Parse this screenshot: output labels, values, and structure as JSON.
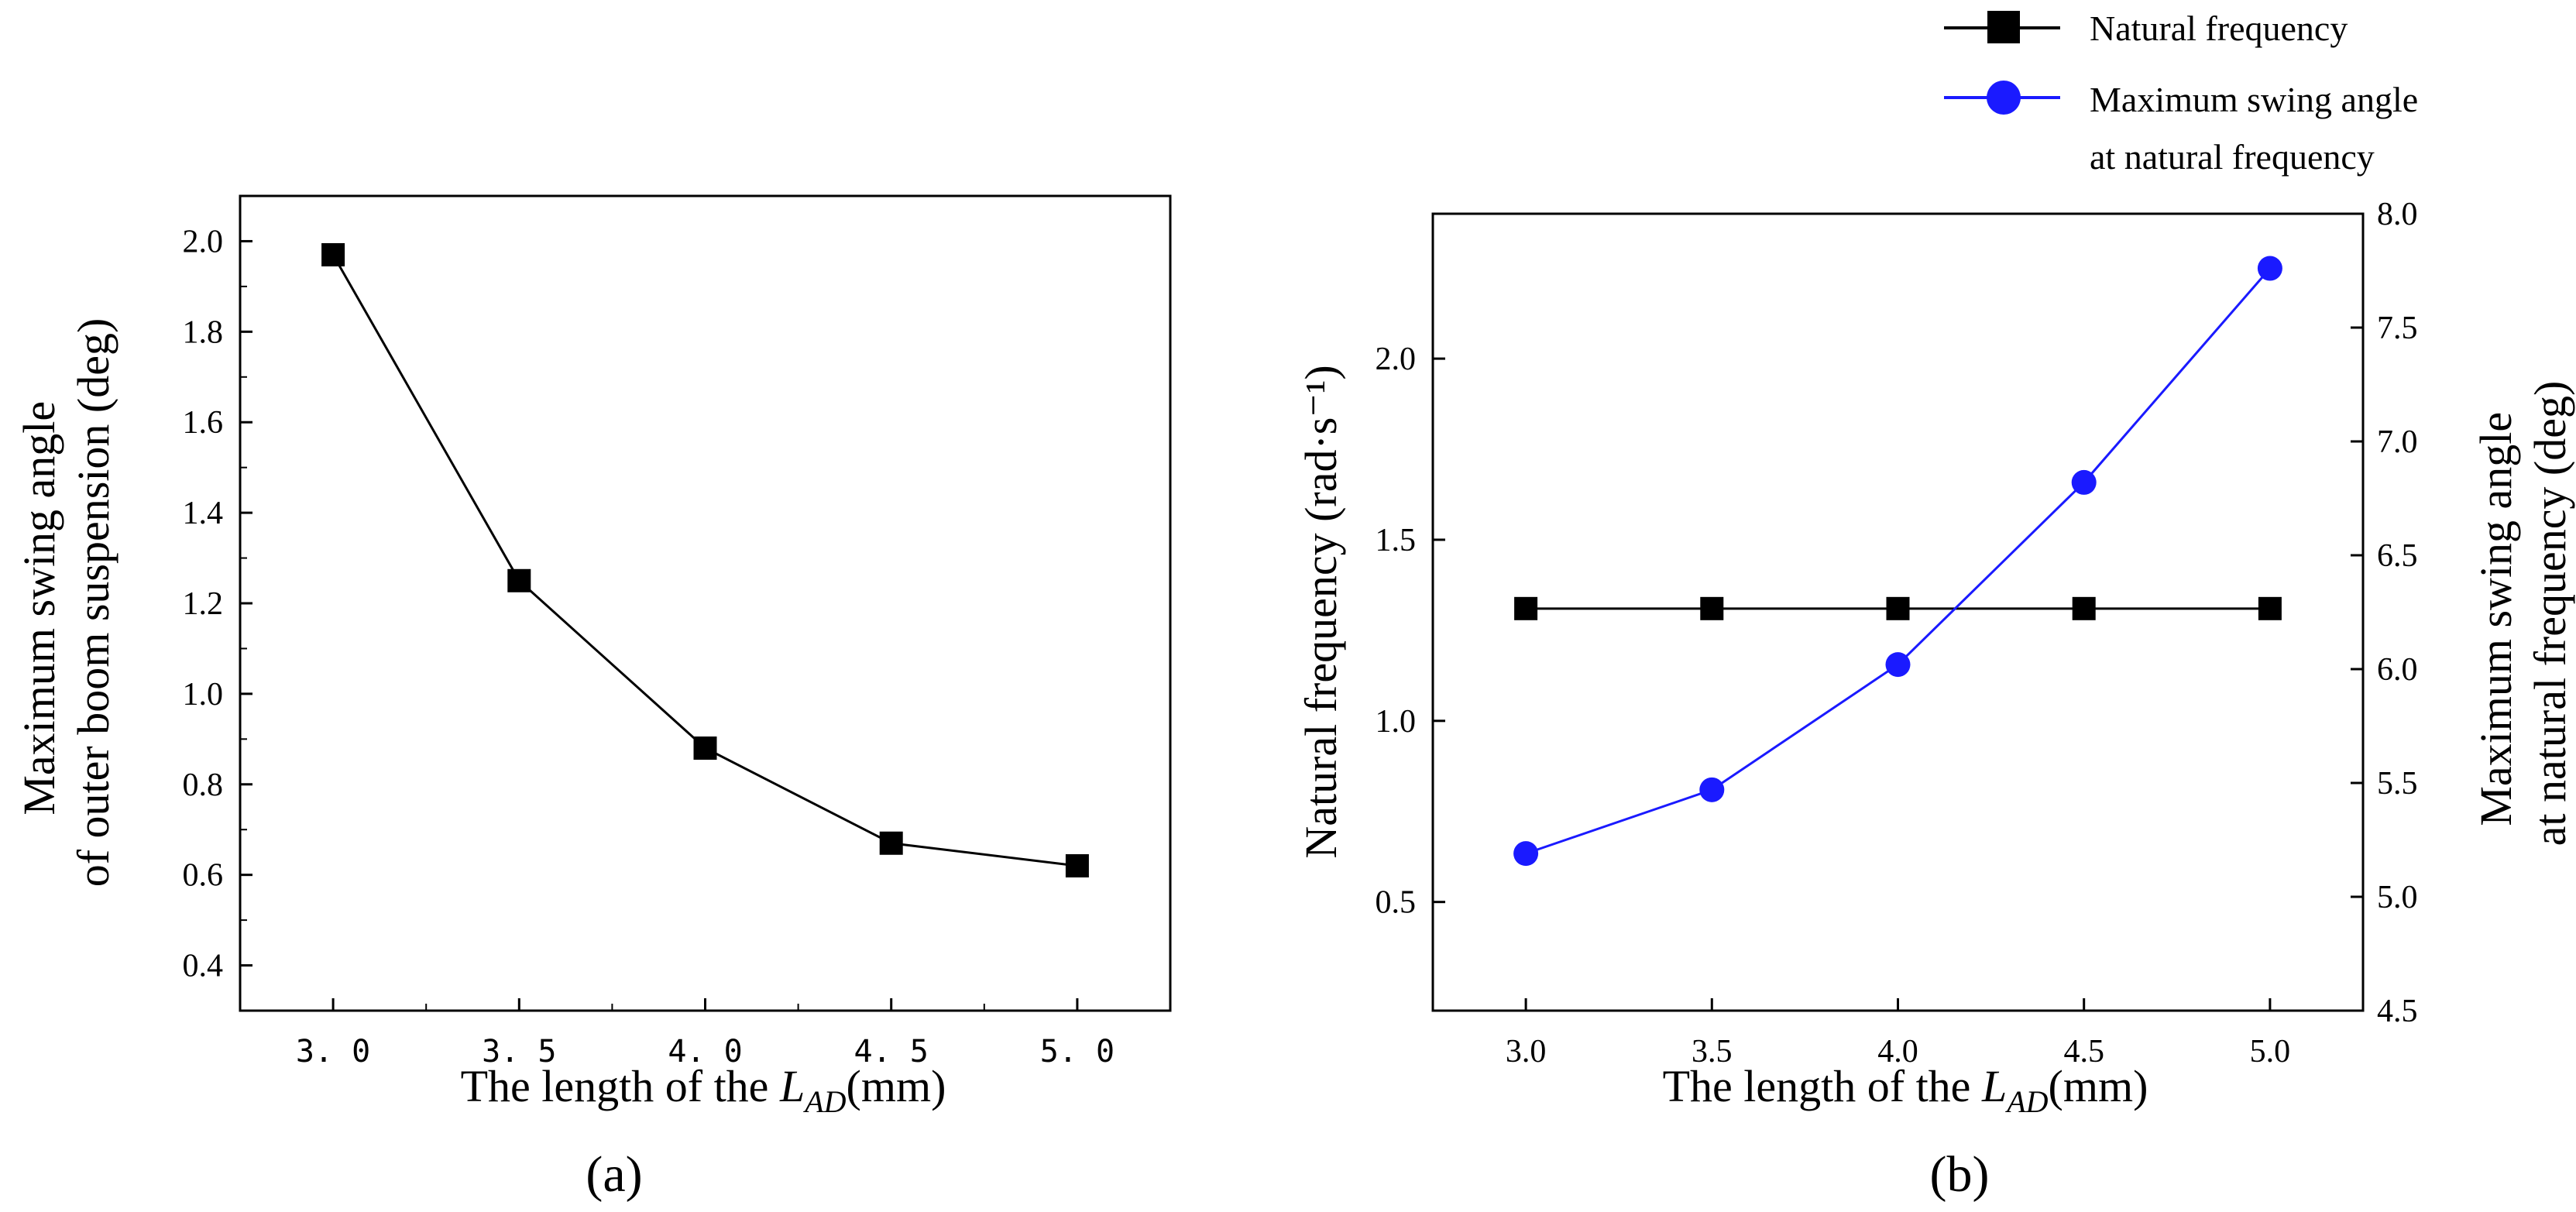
{
  "chart_data": [
    {
      "panel_label": "(a)",
      "type": "line",
      "title": "",
      "x": [
        3.0,
        3.5,
        4.0,
        4.5,
        5.0
      ],
      "x_tick_labels": [
        "3. 0",
        "3. 5",
        "4. 0",
        "4. 5",
        "5. 0"
      ],
      "xlabel": {
        "prefix": "The length of the ",
        "var": "L",
        "sub": "AD",
        "unit": "(mm)"
      },
      "ylabel": [
        "Maximum swing angle",
        "of outer boom suspension (deg)"
      ],
      "ylim": [
        0.3,
        2.1
      ],
      "y_ticks": [
        0.4,
        0.6,
        0.8,
        1.0,
        1.2,
        1.4,
        1.6,
        1.8,
        2.0
      ],
      "y_tick_labels": [
        "0.4",
        "0.6",
        "0.8",
        "1.0",
        "1.2",
        "1.4",
        "1.6",
        "1.8",
        "2.0"
      ],
      "series": [
        {
          "name": "Maximum swing angle",
          "marker": "square",
          "color": "#000000",
          "values": [
            1.97,
            1.25,
            0.88,
            0.67,
            0.62
          ]
        }
      ]
    },
    {
      "panel_label": "(b)",
      "type": "line",
      "title": "",
      "x": [
        3.0,
        3.5,
        4.0,
        4.5,
        5.0
      ],
      "x_tick_labels": [
        "3.0",
        "3.5",
        "4.0",
        "4.5",
        "5.0"
      ],
      "xlabel": {
        "prefix": "The length of the ",
        "var": "L",
        "sub": "AD",
        "unit": "(mm)"
      },
      "ylabel_left": "Natural frequency (rad·s⁻¹)",
      "ylabel_right": [
        "Maximum swing angle",
        "at natural frequency (deg)"
      ],
      "ylim_left": [
        0.2,
        2.4
      ],
      "y_ticks_left": [
        0.5,
        1.0,
        1.5,
        2.0
      ],
      "y_tick_labels_left": [
        "0.5",
        "1.0",
        "1.5",
        "2.0"
      ],
      "ylim_right": [
        4.5,
        8.0
      ],
      "y_ticks_right": [
        4.5,
        5.0,
        5.5,
        6.0,
        6.5,
        7.0,
        7.5,
        8.0
      ],
      "y_tick_labels_right": [
        "4.5",
        "5.0",
        "5.5",
        "6.0",
        "6.5",
        "7.0",
        "7.5",
        "8.0"
      ],
      "legend_position": "top-right",
      "series": [
        {
          "name": "Natural frequency",
          "marker": "square",
          "color": "#000000",
          "axis": "left",
          "values": [
            1.31,
            1.31,
            1.31,
            1.31,
            1.31
          ]
        },
        {
          "name_lines": [
            "Maximum swing angle",
            "at natural frequency"
          ],
          "marker": "circle",
          "color": "#1a1aff",
          "axis": "right",
          "values": [
            5.19,
            5.47,
            6.02,
            6.82,
            7.76
          ]
        }
      ]
    }
  ]
}
